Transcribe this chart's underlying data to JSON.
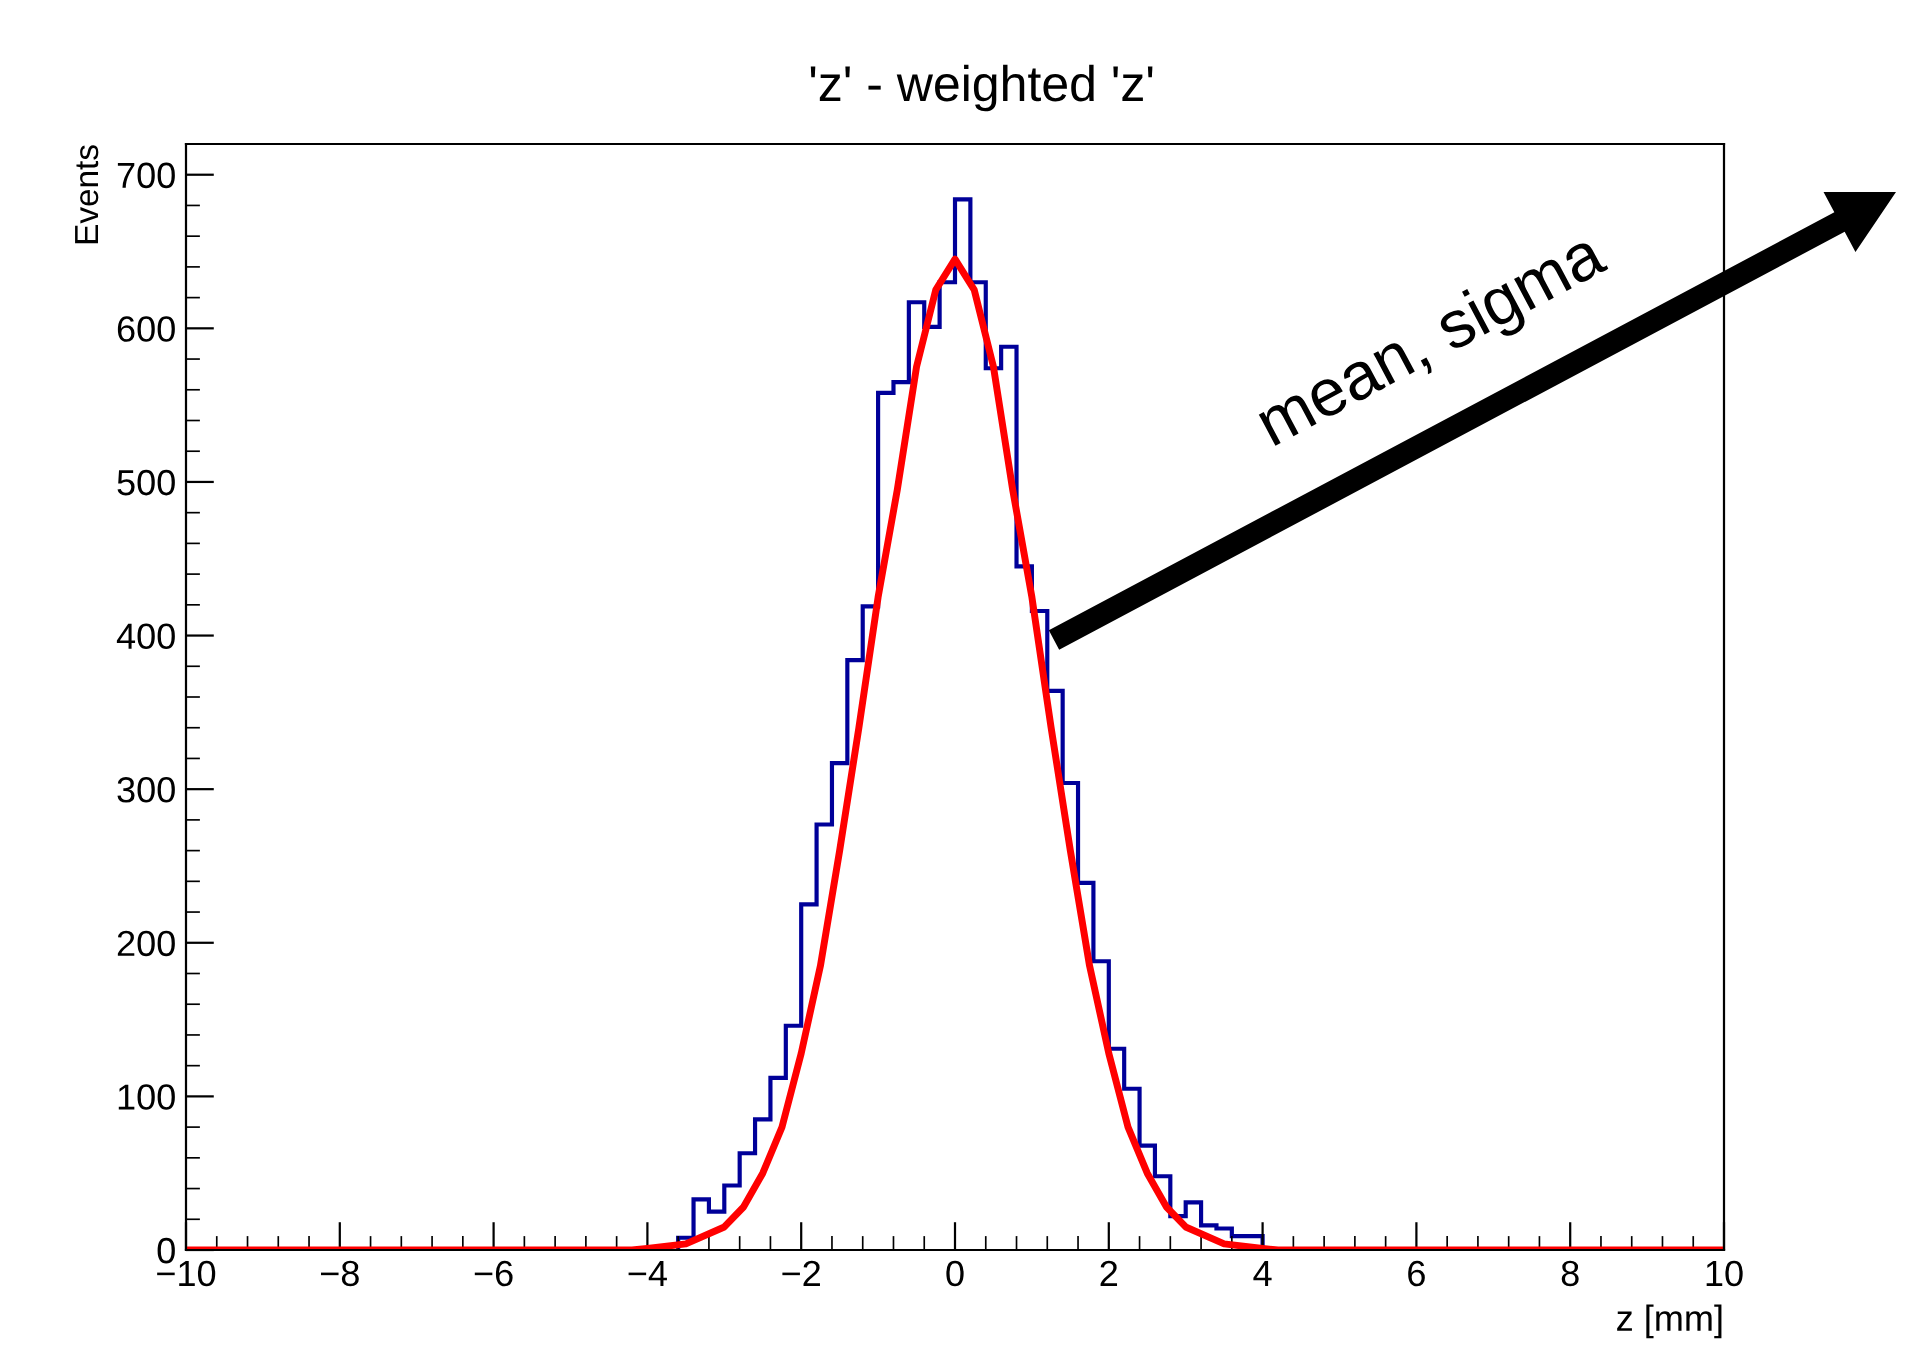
{
  "chart_data": {
    "type": "histogram",
    "title": "'z' - weighted 'z'",
    "xlabel": "z [mm]",
    "ylabel": "Events",
    "xlim": [
      -10,
      10
    ],
    "ylim": [
      0,
      720
    ],
    "xticks": [
      {
        "value": -10,
        "label": "−10"
      },
      {
        "value": -8,
        "label": "−8"
      },
      {
        "value": -6,
        "label": "−6"
      },
      {
        "value": -4,
        "label": "−4"
      },
      {
        "value": -2,
        "label": "−2"
      },
      0,
      2,
      4,
      6,
      8,
      10
    ],
    "yticks": [
      0,
      100,
      200,
      300,
      400,
      500,
      600,
      700
    ],
    "grid": false,
    "series": [
      {
        "type": "histogram",
        "color": "#000099",
        "bins": [
          -3.6,
          -3.4,
          -3.2,
          -3.0,
          -2.8,
          -2.6,
          -2.4,
          -2.2,
          -2.0,
          -1.8,
          -1.6,
          -1.4,
          -1.2,
          -1.0,
          -0.8,
          -0.6,
          -0.4,
          -0.2,
          0,
          0.2,
          0.4,
          0.6,
          0.8,
          1.0,
          1.2,
          1.4,
          1.6,
          1.8,
          2.0,
          2.2,
          2.4,
          2.6,
          2.8,
          3.0,
          3.2,
          3.4,
          3.6,
          3.8,
          4.0
        ],
        "values": [
          8,
          33,
          25,
          42,
          63,
          85,
          112,
          146,
          225,
          277,
          317,
          384,
          419,
          558,
          565,
          617,
          601,
          630,
          684,
          630,
          574,
          588,
          445,
          416,
          364,
          304,
          239,
          188,
          131,
          105,
          68,
          48,
          22,
          31,
          16,
          14,
          9,
          9
        ]
      },
      {
        "type": "line",
        "color": "#ff0000",
        "x": [
          -10,
          -4.2,
          -4,
          -3.5,
          -3,
          -2.75,
          -2.5,
          -2.25,
          -2,
          -1.75,
          -1.5,
          -1.25,
          -1,
          -0.75,
          -0.5,
          -0.25,
          0,
          0.25,
          0.5,
          0.75,
          1,
          1.25,
          1.5,
          1.75,
          2,
          2.25,
          2.5,
          2.75,
          3,
          3.5,
          4,
          4.2,
          10
        ],
        "values": [
          0,
          0,
          1,
          4,
          15,
          28,
          50,
          80,
          128,
          185,
          260,
          340,
          425,
          495,
          575,
          625,
          645,
          625,
          575,
          495,
          425,
          340,
          260,
          185,
          128,
          80,
          50,
          28,
          15,
          4,
          1,
          0,
          0
        ]
      }
    ],
    "annotations": [
      "mean, sigma"
    ]
  }
}
